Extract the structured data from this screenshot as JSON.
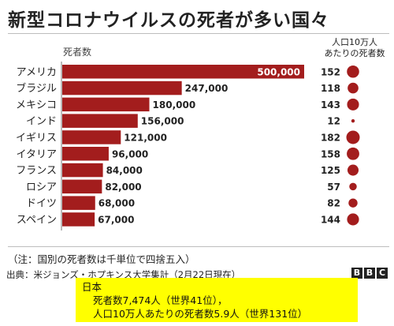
{
  "header": {
    "title": "新型コロナウイルスの死者が多い国々"
  },
  "chart_data": {
    "type": "bar",
    "orientation": "horizontal",
    "title": "新型コロナウイルスの死者が多い国々",
    "value_label": "死者数",
    "secondary_label_line1": "人口10万人",
    "secondary_label_line2": "あたりの死者数",
    "categories": [
      "アメリカ",
      "ブラジル",
      "メキシコ",
      "インド",
      "イギリス",
      "イタリア",
      "フランス",
      "ロシア",
      "ドイツ",
      "スペイン"
    ],
    "values": [
      500000,
      247000,
      180000,
      156000,
      121000,
      96000,
      84000,
      82000,
      68000,
      67000
    ],
    "value_labels": [
      "500,000",
      "247,000",
      "180,000",
      "156,000",
      "121,000",
      "96,000",
      "84,000",
      "82,000",
      "68,000",
      "67,000"
    ],
    "deaths_per_100k": [
      152,
      118,
      143,
      12,
      182,
      158,
      125,
      57,
      82,
      144
    ],
    "xlim": [
      0,
      500000
    ],
    "grid": false,
    "bar_color": "#a31d1d",
    "dot_color": "#a31d1d"
  },
  "footer": {
    "note": "（注：国別の死者数は千単位で四捨五入）",
    "source": "出典：米ジョンズ・ホプキンス大学集計（2月22日現在）",
    "bbc_letters": [
      "B",
      "B",
      "C"
    ]
  },
  "japan_box": {
    "heading": "日本",
    "line1": "死者数7,474人（世界41位），",
    "line2": "人口10万人あたりの死者数5.9人（世界131位）",
    "background": "#ffff00"
  }
}
